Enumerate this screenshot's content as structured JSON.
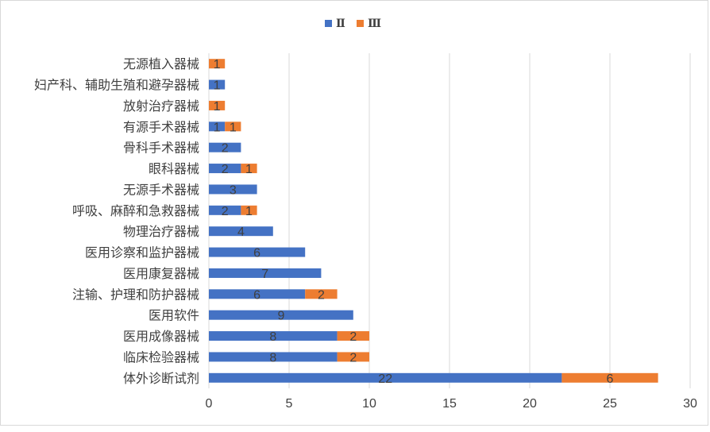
{
  "chart_data": {
    "type": "bar",
    "orientation": "horizontal",
    "stacked": true,
    "categories": [
      "无源植入器械",
      "妇产科、辅助生殖和避孕器械",
      "放射治疗器械",
      "有源手术器械",
      "骨科手术器械",
      "眼科器械",
      "无源手术器械",
      "呼吸、麻醉和急救器械",
      "物理治疗器械",
      "医用诊察和监护器械",
      "医用康复器械",
      "注输、护理和防护器械",
      "医用软件",
      "医用成像器械",
      "临床检验器械",
      "体外诊断试剂"
    ],
    "series": [
      {
        "name": "Ⅱ",
        "color": "#4472c4",
        "values": [
          0,
          1,
          0,
          1,
          2,
          2,
          3,
          2,
          4,
          6,
          7,
          6,
          9,
          8,
          8,
          22
        ]
      },
      {
        "name": "Ⅲ",
        "color": "#ed7d31",
        "values": [
          1,
          0,
          1,
          1,
          0,
          1,
          0,
          1,
          0,
          0,
          0,
          2,
          0,
          2,
          2,
          6
        ]
      }
    ],
    "xlim": [
      0,
      30
    ],
    "xticks": [
      "0",
      "5",
      "10",
      "15",
      "20",
      "25",
      "30"
    ],
    "grid": true,
    "legend_position": "top"
  }
}
